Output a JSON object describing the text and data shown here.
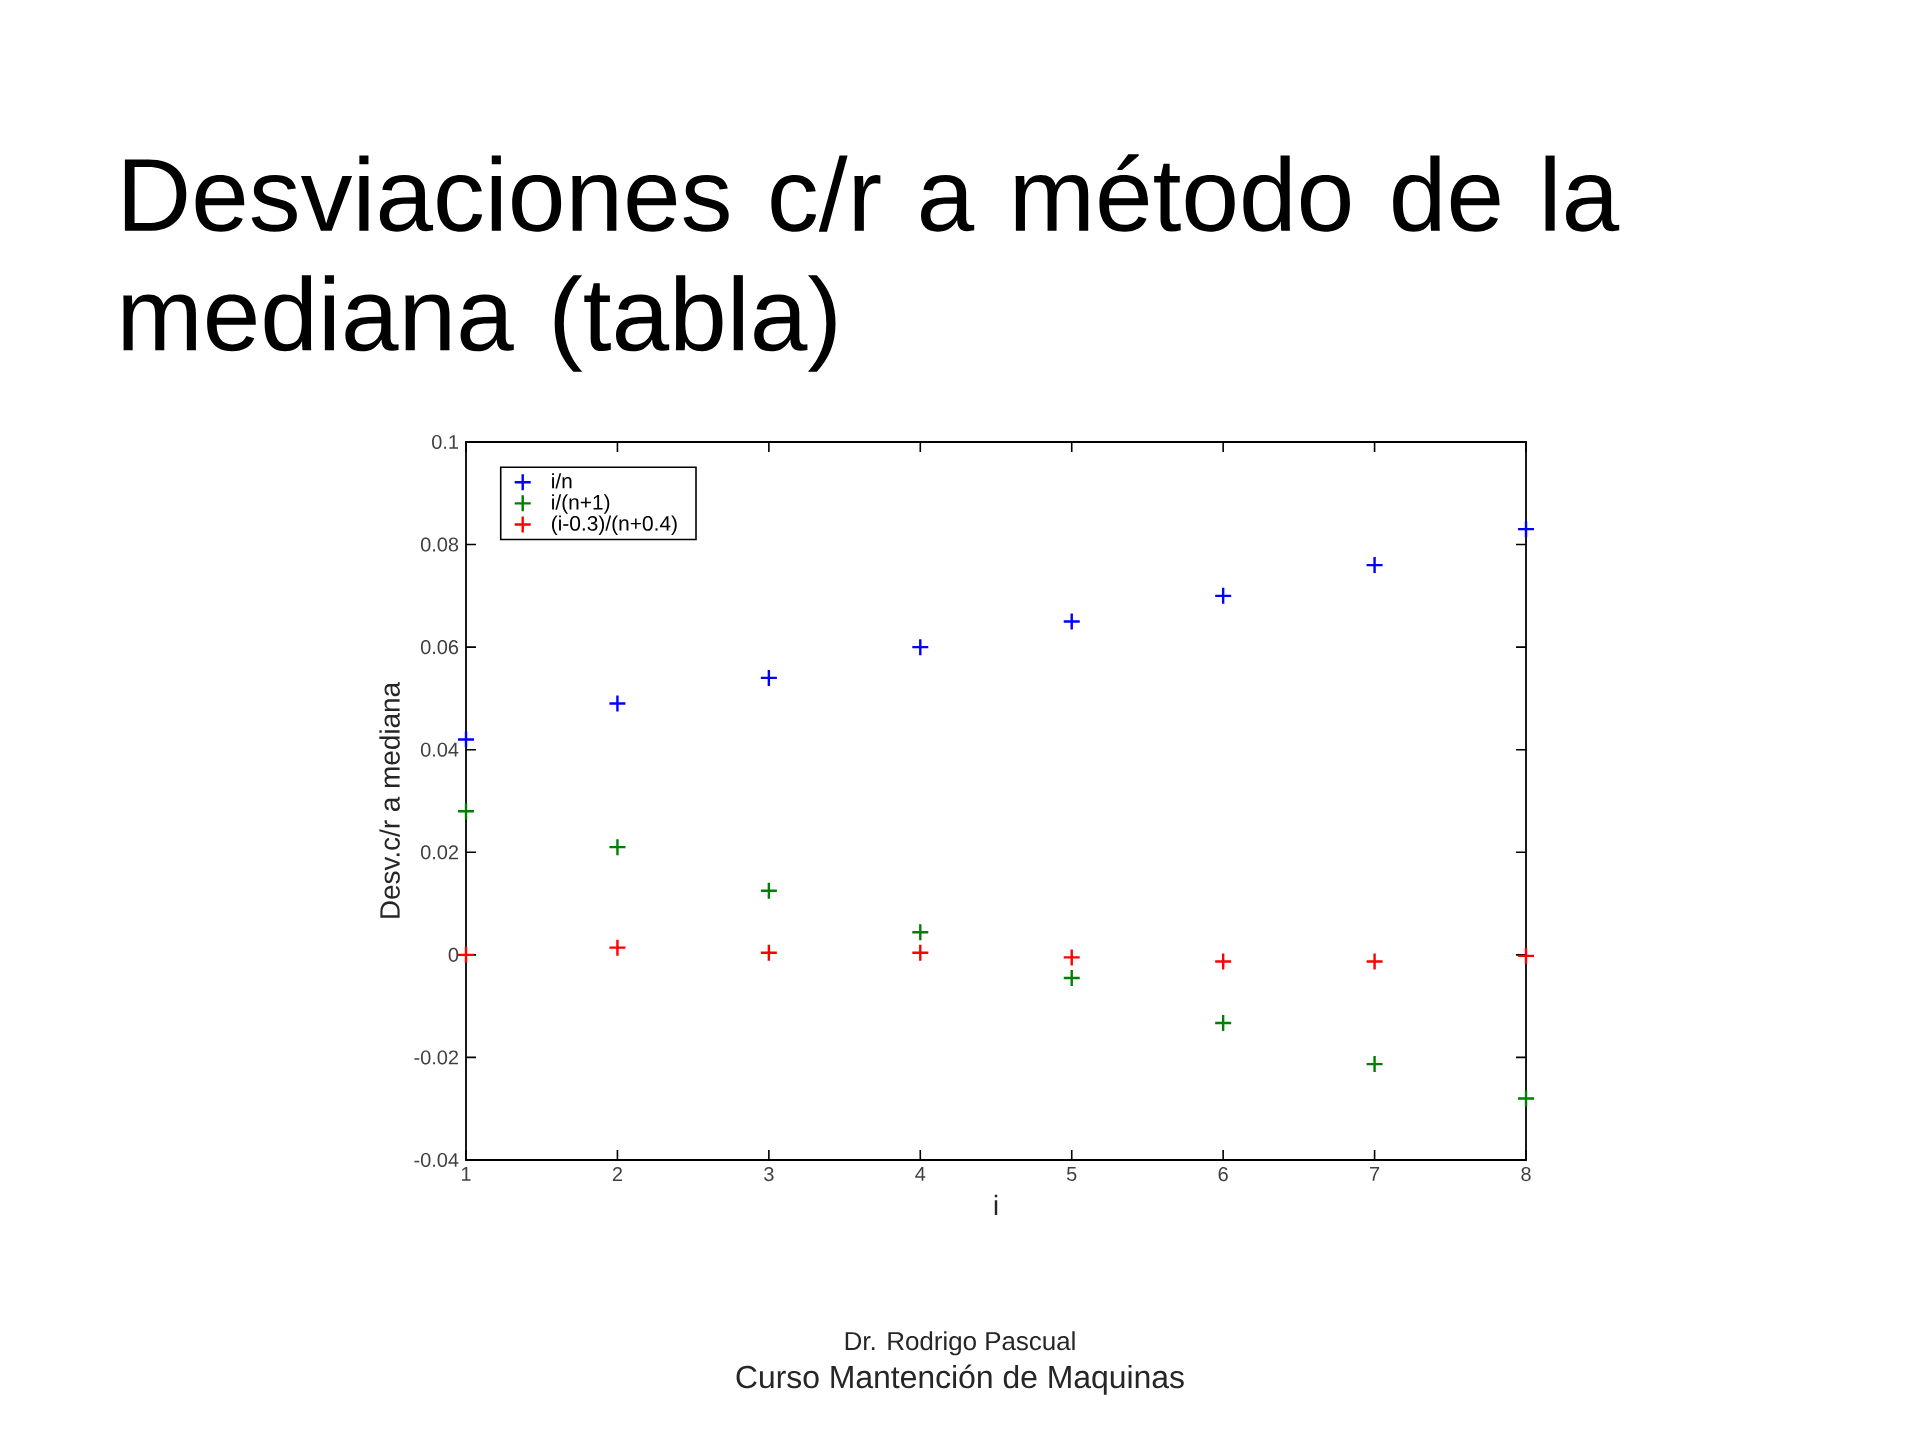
{
  "chart_data": {
    "type": "scatter",
    "title": "Desviaciones c/r a método de la mediana (tabla)",
    "xlabel": "i",
    "ylabel": "Desv.c/r a mediana",
    "x": [
      1,
      2,
      3,
      4,
      5,
      6,
      7,
      8
    ],
    "series": [
      {
        "name": "i/n",
        "color": "#0000ff",
        "values": [
          0.042,
          0.049,
          0.054,
          0.06,
          0.065,
          0.07,
          0.076,
          0.083
        ]
      },
      {
        "name": "i/(n+1)",
        "color": "#008000",
        "values": [
          0.028,
          0.021,
          0.0125,
          0.0044,
          -0.0045,
          -0.0133,
          -0.0213,
          -0.028
        ]
      },
      {
        "name": "(i-0.3)/(n+0.4)",
        "color": "#ff0000",
        "values": [
          0.0,
          0.0014,
          0.0004,
          0.0004,
          -0.0005,
          -0.0013,
          -0.0013,
          -0.0002
        ]
      }
    ],
    "xlim": [
      1,
      8
    ],
    "ylim": [
      -0.04,
      0.1
    ],
    "xticks": [
      1,
      2,
      3,
      4,
      5,
      6,
      7,
      8
    ],
    "yticks": [
      -0.04,
      -0.02,
      0,
      0.02,
      0.04,
      0.06,
      0.08,
      0.1
    ],
    "legend": "top left",
    "marker": "cross",
    "annotations": [
      "Dr. Rodrigo Pascual",
      "Curso Mantención de Maquinas"
    ]
  }
}
